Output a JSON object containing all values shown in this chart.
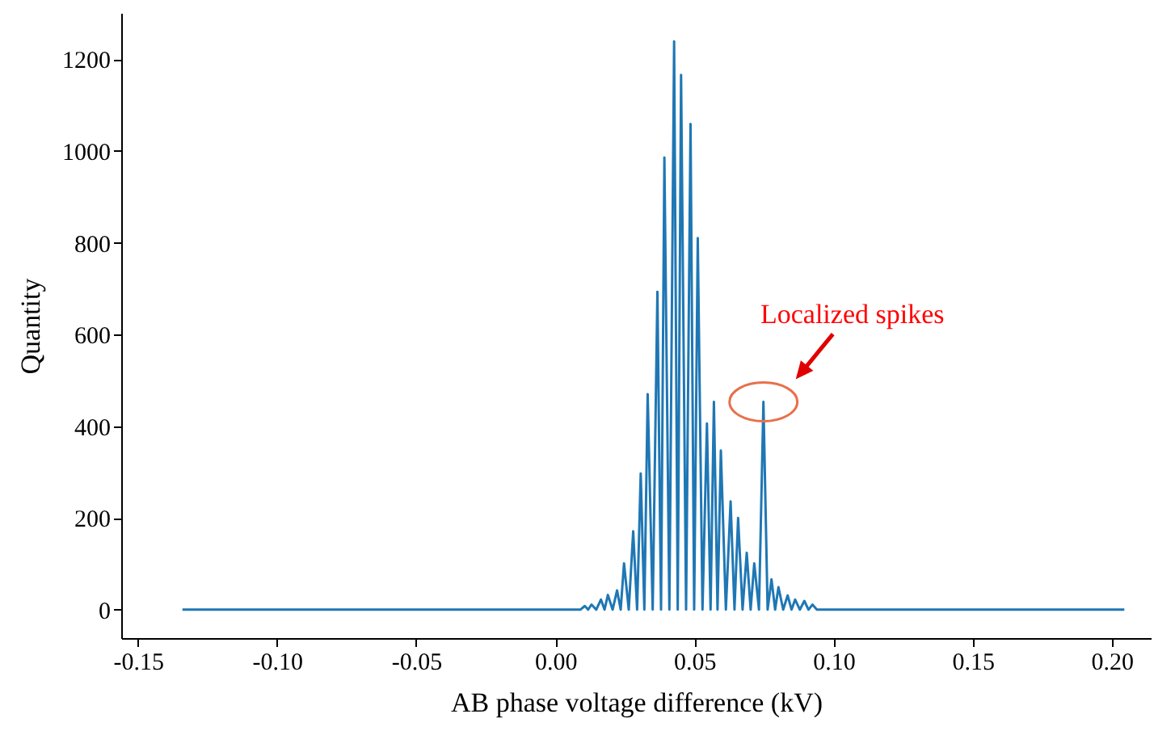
{
  "chart_data": {
    "type": "line",
    "xlabel": "AB phase voltage difference (kV)",
    "ylabel": "Quantity",
    "x": [
      -0.134,
      0.009,
      0.0106,
      0.0118,
      0.013,
      0.0147,
      0.0164,
      0.0177,
      0.0189,
      0.0206,
      0.0222,
      0.0235,
      0.0247,
      0.0264,
      0.028,
      0.0294,
      0.0307,
      0.032,
      0.0332,
      0.035,
      0.0367,
      0.038,
      0.0392,
      0.041,
      0.0427,
      0.044,
      0.0452,
      0.047,
      0.0486,
      0.0499,
      0.0512,
      0.0529,
      0.0545,
      0.0558,
      0.057,
      0.0583,
      0.0595,
      0.0613,
      0.063,
      0.0644,
      0.0657,
      0.0673,
      0.0688,
      0.0702,
      0.0715,
      0.0732,
      0.0748,
      0.0763,
      0.0777,
      0.079,
      0.0802,
      0.0819,
      0.0835,
      0.0849,
      0.0862,
      0.0879,
      0.0895,
      0.091,
      0.0924,
      0.094,
      0.2045
    ],
    "series": [
      {
        "color": "#1f77b4",
        "values": [
          0,
          0,
          8,
          0,
          11,
          0,
          22,
          0,
          32,
          0,
          42,
          0,
          101,
          0,
          171,
          0,
          297,
          0,
          470,
          0,
          693,
          0,
          986,
          0,
          1239,
          0,
          1166,
          0,
          1059,
          0,
          810,
          0,
          406,
          0,
          453,
          0,
          347,
          0,
          236,
          0,
          200,
          0,
          124,
          0,
          101,
          0,
          453,
          0,
          66,
          0,
          49,
          0,
          31,
          0,
          22,
          0,
          19,
          0,
          11,
          0,
          0
        ]
      }
    ],
    "xlim": [
      -0.156,
      0.214
    ],
    "ylim": [
      -62,
      1301
    ],
    "xticks": [
      {
        "value": -0.15,
        "label": "-0.15"
      },
      {
        "value": -0.1,
        "label": "-0.10"
      },
      {
        "value": -0.05,
        "label": "-0.05"
      },
      {
        "value": 0,
        "label": "0.00"
      },
      {
        "value": 0.05,
        "label": "0.05"
      },
      {
        "value": 0.1,
        "label": "0.10"
      },
      {
        "value": 0.15,
        "label": "0.15"
      },
      {
        "value": 0.2,
        "label": "0.20"
      }
    ],
    "yticks": [
      0,
      200,
      400,
      600,
      800,
      1000,
      1200
    ],
    "annotations": [
      {
        "text": "Localized spikes",
        "x": 0.0748,
        "y": 453
      }
    ]
  }
}
